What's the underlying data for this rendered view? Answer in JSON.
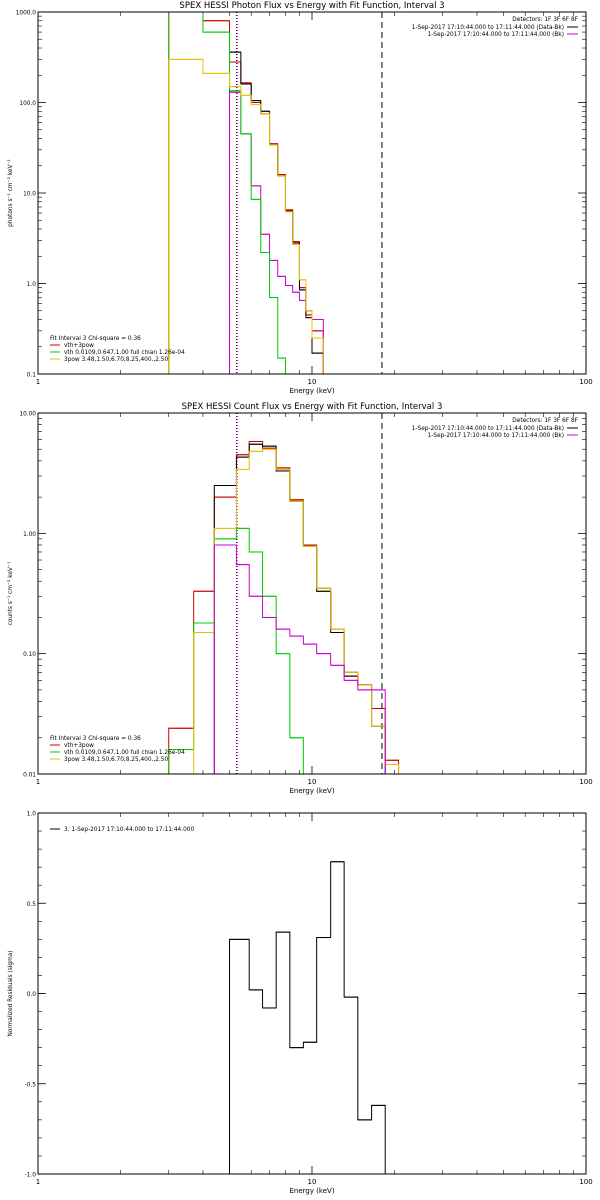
{
  "chart_data": [
    {
      "type": "line",
      "title": "SPEX HESSI Photon Flux vs Energy with Fit Function, Interval 3",
      "xlabel": "Energy (keV)",
      "ylabel": "photons s⁻¹ cm⁻² keV⁻¹",
      "xscale": "log",
      "yscale": "log",
      "xlim": [
        1,
        100
      ],
      "ylim": [
        0.1,
        1000
      ],
      "xticks": [
        {
          "v": 1,
          "label": "1"
        },
        {
          "v": 10,
          "label": "10"
        },
        {
          "v": 100,
          "label": "100"
        }
      ],
      "yticks": [
        {
          "v": 0.1,
          "label": "0.1"
        },
        {
          "v": 1,
          "label": "1.0"
        },
        {
          "v": 10,
          "label": "10.0"
        },
        {
          "v": 100,
          "label": "100.0"
        },
        {
          "v": 1000,
          "label": "1000.0"
        }
      ],
      "vlines": [
        {
          "x": 5.3,
          "style": "dotted",
          "color": "#000000"
        },
        {
          "x": 5.3,
          "style": "dotted",
          "color": "#cc00cc"
        },
        {
          "x": 18.0,
          "style": "dashed",
          "color": "#000000"
        }
      ],
      "legend_tr": {
        "header": "Detectors: 1F 3F 6F 8F",
        "items": [
          {
            "label": "1-Sep-2017 17:10:44.000 to 17:11:44.000 (Data-Bk)",
            "color": "#000000"
          },
          {
            "label": "1-Sep-2017 17:10:44.000 to 17:11:44.000 (Bk)",
            "color": "#cc00cc"
          }
        ]
      },
      "legend_bl": {
        "header": "Fit Interval 3   Chi-square = 0.36",
        "items": [
          {
            "label": "vth+3pow",
            "color": "#cc0000"
          },
          {
            "label": "vth 0.0109,0.647,1.00  full chian 1.26e-04",
            "color": "#00cc00"
          },
          {
            "label": "3pow 3.48,1.50,6.70,8.25,400.,2.50",
            "color": "#e6c000"
          }
        ]
      },
      "edges": [
        3.0,
        4.0,
        5.0,
        5.5,
        6.0,
        6.5,
        7.0,
        7.5,
        8.0,
        8.5,
        9.0,
        9.5,
        10.0,
        11.0,
        12.0,
        13.0,
        14.0,
        15.0,
        16.0,
        17.0,
        18.0
      ],
      "series": [
        {
          "name": "vth+3pow",
          "color": "#cc0000",
          "values": [
            1000,
            800,
            280,
            165,
            100,
            75,
            35,
            16,
            6.5,
            2.9,
            0.9,
            0.45,
            0.3,
            null,
            null,
            null,
            null,
            null,
            null,
            null
          ]
        },
        {
          "name": "Data-Bk",
          "color": "#000000",
          "values": [
            null,
            null,
            360,
            160,
            105,
            80,
            34,
            15.5,
            6.3,
            2.8,
            0.85,
            0.42,
            0.17,
            null,
            null,
            null,
            null,
            null,
            null,
            null
          ]
        },
        {
          "name": "Bk",
          "color": "#cc00cc",
          "values": [
            null,
            null,
            130,
            45,
            12,
            3.5,
            1.8,
            1.2,
            0.95,
            0.8,
            0.65,
            0.5,
            0.4,
            null,
            null,
            null,
            null,
            null,
            null,
            null
          ]
        },
        {
          "name": "vth",
          "color": "#00cc00",
          "values": [
            1000,
            600,
            135,
            45,
            8.5,
            2.2,
            0.7,
            0.15,
            0.1,
            null,
            null,
            null,
            null,
            null,
            null,
            null,
            null,
            null,
            null,
            null
          ]
        },
        {
          "name": "3pow",
          "color": "#e6c000",
          "values": [
            300,
            210,
            150,
            120,
            95,
            75,
            34,
            15.5,
            6.2,
            2.7,
            1.1,
            0.5,
            0.25,
            null,
            null,
            null,
            null,
            null,
            null,
            null
          ]
        }
      ]
    },
    {
      "type": "line",
      "title": "SPEX HESSI Count Flux vs Energy with Fit Function, Interval 3",
      "xlabel": "Energy (keV)",
      "ylabel": "counts s⁻¹ cm⁻² keV⁻¹",
      "xscale": "log",
      "yscale": "log",
      "xlim": [
        1,
        100
      ],
      "ylim": [
        0.01,
        10
      ],
      "xticks": [
        {
          "v": 1,
          "label": "1"
        },
        {
          "v": 10,
          "label": "10"
        },
        {
          "v": 100,
          "label": "100"
        }
      ],
      "yticks": [
        {
          "v": 0.01,
          "label": "0.01"
        },
        {
          "v": 0.1,
          "label": "0.10"
        },
        {
          "v": 1,
          "label": "1.00"
        },
        {
          "v": 10,
          "label": "10.00"
        }
      ],
      "vlines": [
        {
          "x": 5.3,
          "style": "dotted",
          "color": "#000000"
        },
        {
          "x": 5.3,
          "style": "dotted",
          "color": "#cc00cc"
        },
        {
          "x": 18.0,
          "style": "dashed",
          "color": "#000000"
        }
      ],
      "legend_tr": {
        "header": "Detectors: 1F 3F 6F 8F",
        "items": [
          {
            "label": "1-Sep-2017 17:10:44.000 to 17:11:44.000 (Data-Bk)",
            "color": "#000000"
          },
          {
            "label": "1-Sep-2017 17:10:44.000 to 17:11:44.000 (Bk)",
            "color": "#cc00cc"
          }
        ]
      },
      "legend_bl": {
        "header": "Fit Interval 3   Chi-square = 0.36",
        "items": [
          {
            "label": "vth+3pow",
            "color": "#cc0000"
          },
          {
            "label": "vth 0.0109,0.647,1.00  full chian 1.26e-04",
            "color": "#00cc00"
          },
          {
            "label": "3pow 3.48,1.50,6.70,8.25,400.,2.50",
            "color": "#e6c000"
          }
        ]
      },
      "edges": [
        3.0,
        3.7,
        4.4,
        5.3,
        5.9,
        6.6,
        7.4,
        8.3,
        9.3,
        10.4,
        11.7,
        13.1,
        14.7,
        16.5,
        18.5,
        20.7
      ],
      "series": [
        {
          "name": "vth+3pow",
          "color": "#cc0000",
          "values": [
            0.024,
            0.33,
            2.0,
            4.5,
            5.8,
            5.1,
            3.5,
            1.9,
            0.8,
            0.35,
            0.16,
            0.07,
            0.055,
            0.035,
            0.013
          ]
        },
        {
          "name": "Data-Bk",
          "color": "#000000",
          "values": [
            null,
            null,
            2.5,
            4.3,
            5.5,
            5.3,
            3.3,
            1.85,
            0.78,
            0.33,
            0.15,
            0.065,
            0.055,
            0.025,
            null
          ]
        },
        {
          "name": "vth",
          "color": "#00cc00",
          "values": [
            0.016,
            0.18,
            0.9,
            1.1,
            0.7,
            0.3,
            0.1,
            0.02,
            0.01,
            null,
            null,
            null,
            null,
            null,
            null
          ]
        },
        {
          "name": "3pow",
          "color": "#e6c000",
          "values": [
            null,
            0.15,
            1.1,
            3.4,
            4.8,
            5.0,
            3.4,
            1.85,
            0.78,
            0.35,
            0.16,
            0.07,
            0.055,
            0.025,
            0.012
          ]
        },
        {
          "name": "Bk",
          "color": "#cc00cc",
          "values": [
            null,
            null,
            0.8,
            0.55,
            0.3,
            0.2,
            0.16,
            0.14,
            0.12,
            0.1,
            0.08,
            0.06,
            0.05,
            0.05,
            null
          ]
        }
      ]
    },
    {
      "type": "line",
      "xlabel": "Energy (keV)",
      "ylabel": "Normalized Residuals (sigma)",
      "xscale": "log",
      "yscale": "linear",
      "xlim": [
        1,
        100
      ],
      "ylim": [
        -1.0,
        1.0
      ],
      "xticks": [
        {
          "v": 1,
          "label": "1"
        },
        {
          "v": 10,
          "label": "10"
        },
        {
          "v": 100,
          "label": "100"
        }
      ],
      "yticks": [
        {
          "v": -1.0,
          "label": "-1.0"
        },
        {
          "v": -0.5,
          "label": "-0.5"
        },
        {
          "v": 0.0,
          "label": "0.0"
        },
        {
          "v": 0.5,
          "label": "0.5"
        },
        {
          "v": 1.0,
          "label": "1.0"
        }
      ],
      "vlines": [],
      "legend_tl": {
        "items": [
          {
            "label": "3.  1-Sep-2017 17:10:44.000 to 17:11:44.000",
            "color": "#000000"
          }
        ]
      },
      "edges": [
        5.0,
        5.9,
        6.6,
        7.4,
        8.3,
        9.3,
        10.4,
        11.7,
        13.1,
        14.7,
        16.5,
        18.5
      ],
      "close_start": -1.0,
      "close_end": -1.0,
      "series": [
        {
          "name": "3.  1-Sep-2017 17:10:44.000 to 17:11:44.000",
          "color": "#000000",
          "values": [
            0.3,
            0.02,
            -0.08,
            0.34,
            -0.3,
            -0.27,
            0.31,
            0.73,
            -0.02,
            -0.7,
            -0.62
          ]
        }
      ]
    }
  ]
}
